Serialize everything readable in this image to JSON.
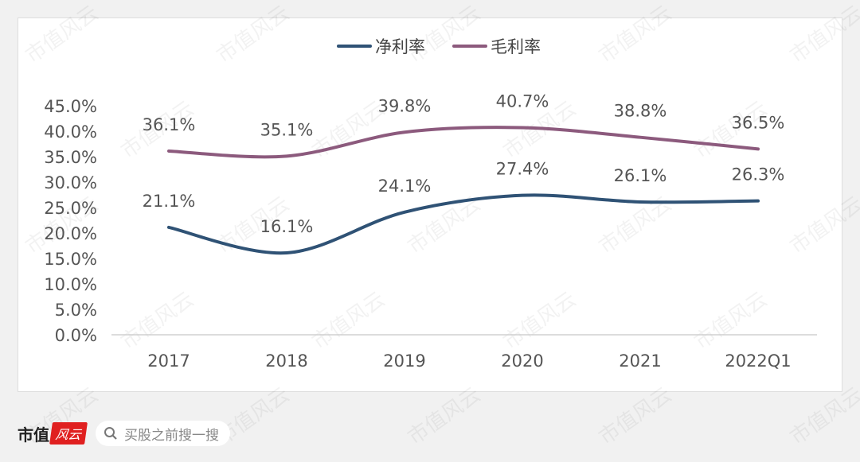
{
  "chart_data": {
    "type": "line",
    "categories": [
      "2017",
      "2018",
      "2019",
      "2020",
      "2021",
      "2022Q1"
    ],
    "series": [
      {
        "name": "净利率",
        "values": [
          21.1,
          16.1,
          24.1,
          27.4,
          26.1,
          26.3
        ],
        "labels": [
          "21.1%",
          "16.1%",
          "24.1%",
          "27.4%",
          "26.1%",
          "26.3%"
        ],
        "color": "#2f5275"
      },
      {
        "name": "毛利率",
        "values": [
          36.1,
          35.1,
          39.8,
          40.7,
          38.8,
          36.5
        ],
        "labels": [
          "36.1%",
          "35.1%",
          "39.8%",
          "40.7%",
          "38.8%",
          "36.5%"
        ],
        "color": "#8c5a7d"
      }
    ],
    "ylim": [
      0,
      45
    ],
    "yticks": [
      "0.0%",
      "5.0%",
      "10.0%",
      "15.0%",
      "20.0%",
      "25.0%",
      "30.0%",
      "35.0%",
      "40.0%",
      "45.0%"
    ],
    "grid": false,
    "legend": "top",
    "smooth": true
  },
  "watermark": "市值风云",
  "footer": {
    "brand": "市值",
    "logo": "风云",
    "search_placeholder": "买股之前搜一搜"
  }
}
